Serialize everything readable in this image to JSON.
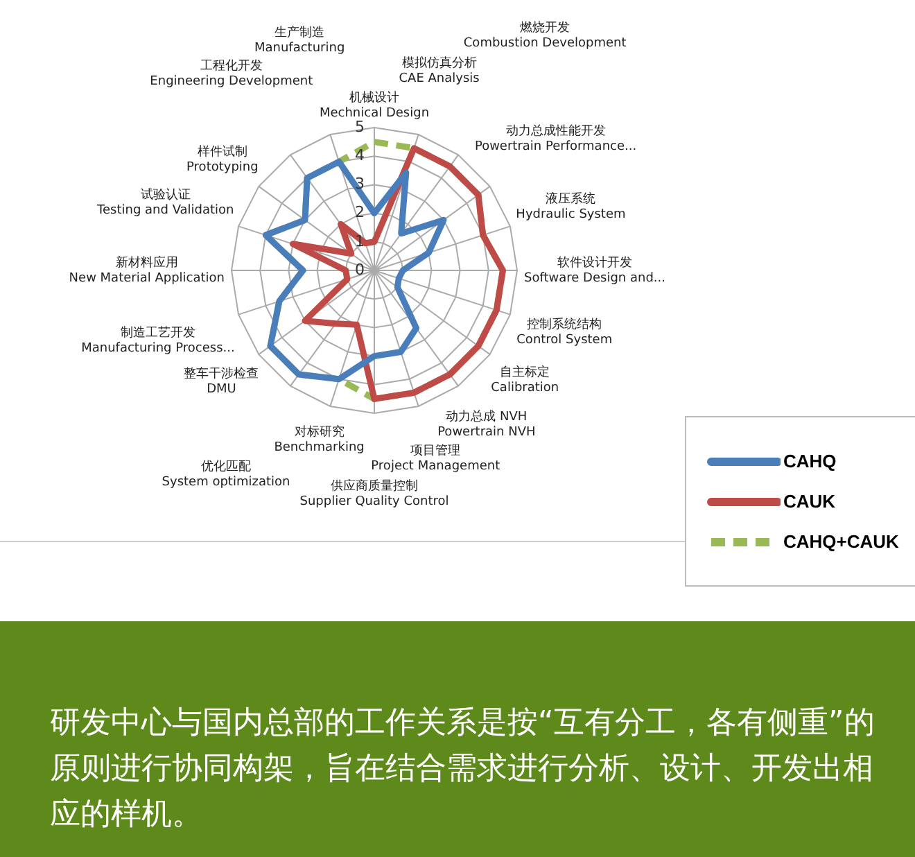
{
  "chart_data": {
    "type": "radar",
    "categories": [
      "机械设计\nMechnical Design",
      "模拟仿真分析\nCAE Analysis",
      "燃烧开发\nCombustion Development",
      "动力总成性能开发\nPowertrain Performance...",
      "液压系统\nHydraulic System",
      "软件设计开发\nSoftware Design and...",
      "控制系统结构\nControl System",
      "自主标定\nCalibration",
      "动力总成 NVH\nPowertrain NVH",
      "项目管理\nProject Management",
      "供应商质量控制\nSupplier Quality Control",
      "对标研究\nBenchmarking",
      "优化匹配\nSystem optimization",
      "整车干涉检查\nDMU",
      "制造工艺开发\nManufacturing Process...",
      "新材料应用\nNew Material Application",
      "试验认证\nTesting and Validation",
      "样件试制\nPrototyping",
      "工程化开发\nEngineering Development",
      "生产制造\nManufacturing"
    ],
    "series": [
      {
        "name": "CAHQ",
        "color": "#4a7ebb",
        "line_style": "solid",
        "values": [
          2,
          3.6,
          1.6,
          3,
          2,
          1,
          0.9,
          1,
          2.5,
          3,
          3,
          4,
          4.5,
          4.5,
          3.5,
          2.5,
          4,
          3,
          4,
          4
        ]
      },
      {
        "name": "CAUK",
        "color": "#be4b48",
        "line_style": "solid",
        "values": [
          1,
          4.5,
          4.5,
          4.5,
          4,
          4.5,
          4.5,
          4.5,
          4.5,
          4.5,
          4.5,
          2,
          2.3,
          3,
          1,
          1,
          3,
          1,
          2,
          1
        ]
      },
      {
        "name": "CAHQ+CAUK",
        "color": "#98b954",
        "line_style": "dashed",
        "values": [
          4.5,
          4.5,
          4.5,
          4.5,
          4,
          4.5,
          4.5,
          4.5,
          4.5,
          4.5,
          4.5,
          4,
          4.5,
          4.5,
          3.5,
          2.5,
          4,
          3,
          4,
          4
        ]
      }
    ],
    "ylim": [
      0,
      5
    ],
    "yticks": [
      0,
      1,
      2,
      3,
      4,
      5
    ],
    "grid": true,
    "legend": "bottom right",
    "marker": "none",
    "annotations": [
      "研发中心与国内总部的工作关系是按“互有分工，各有侧重”的原则进行协同构架，旨在结合需求进行分析、设计、开发出相应的样机。"
    ]
  }
}
